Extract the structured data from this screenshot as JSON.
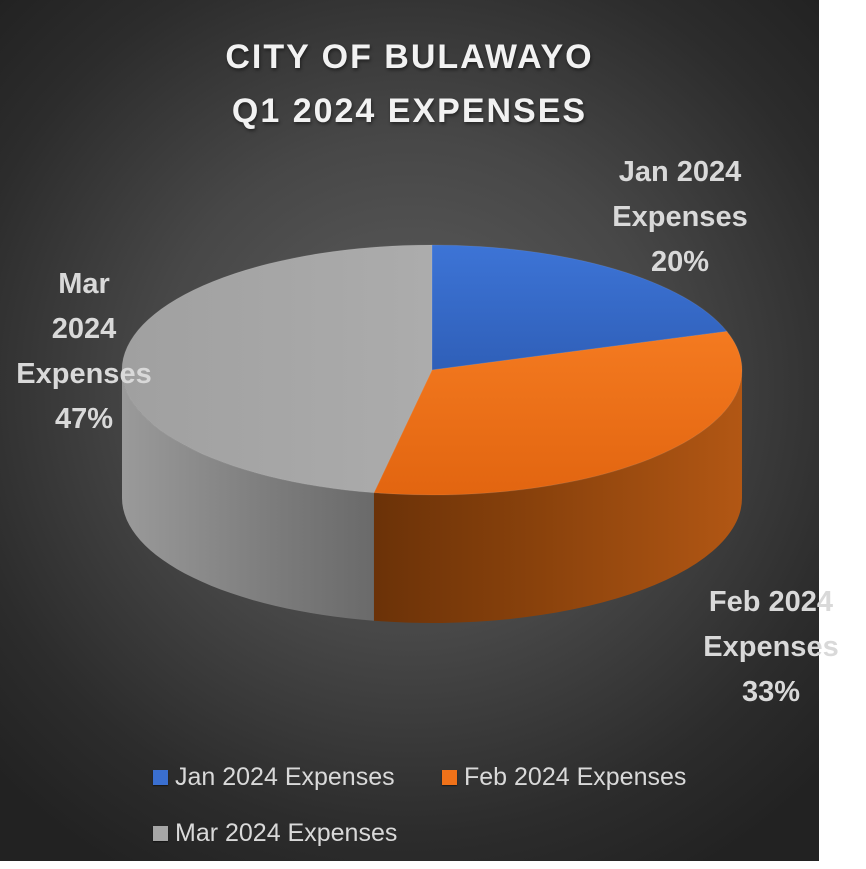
{
  "chart_data": {
    "type": "pie",
    "title": "CITY OF BULAWAYO\nQ1 2024 EXPENSES",
    "title_lines": [
      "CITY OF BULAWAYO",
      "Q1 2024 EXPENSES"
    ],
    "categories": [
      "Jan 2024 Expenses",
      "Feb 2024 Expenses",
      "Mar 2024 Expenses"
    ],
    "values": [
      20,
      33,
      47
    ],
    "percent_labels": [
      "20%",
      "33%",
      "47%"
    ],
    "colors": [
      "#3a6fd0",
      "#f07219",
      "#a6a6a6"
    ],
    "style": "3d-pie",
    "legend_position": "bottom",
    "data_labels": [
      {
        "lines": [
          "Jan 2024",
          "Expenses",
          "20%"
        ]
      },
      {
        "lines": [
          "Feb 2024",
          "Expenses",
          "33%"
        ]
      },
      {
        "lines": [
          "Mar",
          "2024",
          "Expenses",
          "47%"
        ]
      }
    ]
  }
}
